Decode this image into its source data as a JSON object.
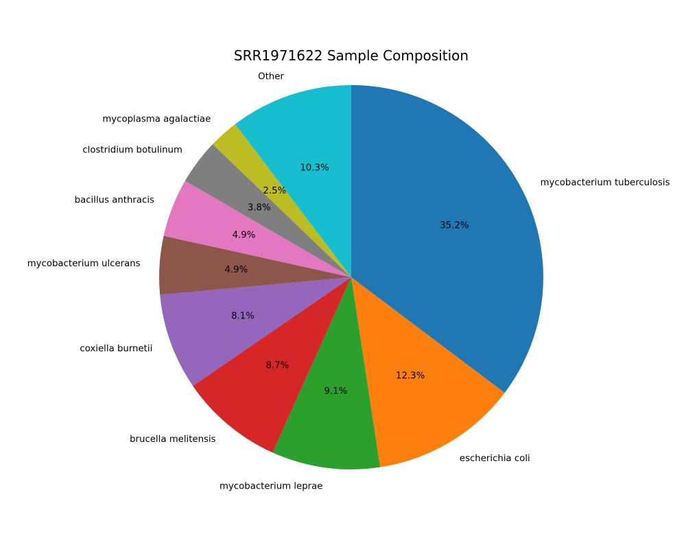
{
  "chart_data": {
    "type": "pie",
    "title": "SRR1971622 Sample Composition",
    "start_angle_deg": 90,
    "direction": "clockwise",
    "slices": [
      {
        "label": "mycobacterium tuberculosis",
        "value": 35.2,
        "pct_label": "35.2%",
        "color": "#1f77b4"
      },
      {
        "label": "escherichia coli",
        "value": 12.3,
        "pct_label": "12.3%",
        "color": "#ff7f0e"
      },
      {
        "label": "mycobacterium leprae",
        "value": 9.1,
        "pct_label": "9.1%",
        "color": "#2ca02c"
      },
      {
        "label": "brucella melitensis",
        "value": 8.7,
        "pct_label": "8.7%",
        "color": "#d62728"
      },
      {
        "label": "coxiella burnetii",
        "value": 8.1,
        "pct_label": "8.1%",
        "color": "#9467bd"
      },
      {
        "label": "mycobacterium ulcerans",
        "value": 4.9,
        "pct_label": "4.9%",
        "color": "#8c564b"
      },
      {
        "label": "bacillus anthracis",
        "value": 4.9,
        "pct_label": "4.9%",
        "color": "#e377c2"
      },
      {
        "label": "clostridium botulinum",
        "value": 3.8,
        "pct_label": "3.8%",
        "color": "#7f7f7f"
      },
      {
        "label": "mycoplasma agalactiae",
        "value": 2.5,
        "pct_label": "2.5%",
        "color": "#bcbd22"
      },
      {
        "label": "Other",
        "value": 10.3,
        "pct_label": "10.3%",
        "color": "#17becf"
      }
    ]
  }
}
